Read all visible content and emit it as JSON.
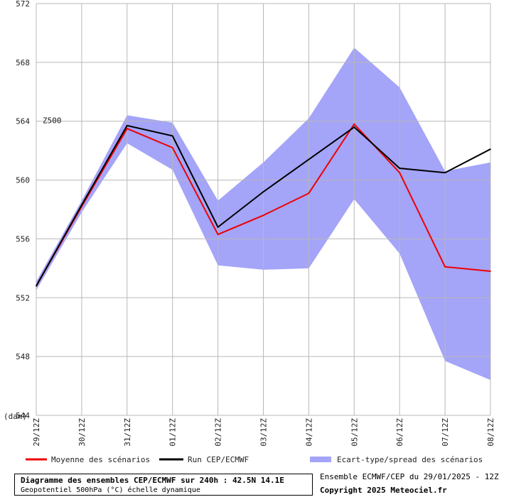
{
  "chart_data": {
    "type": "line",
    "ylabel": "(dam)",
    "ylim": [
      544,
      572
    ],
    "yticks": [
      "572",
      "568",
      "564",
      "560",
      "556",
      "552",
      "548",
      "544"
    ],
    "ytick_values": [
      572,
      568,
      564,
      560,
      556,
      552,
      548,
      544
    ],
    "categories": [
      "29/12Z",
      "30/12Z",
      "31/12Z",
      "01/12Z",
      "02/12Z",
      "03/12Z",
      "04/12Z",
      "05/12Z",
      "06/12Z",
      "07/12Z",
      "08/12Z"
    ],
    "annotation": "Z500",
    "annotation_value": 564,
    "grid": true,
    "series": [
      {
        "name": "Moyenne des scénarios",
        "color": "#ee0000",
        "values": [
          552.8,
          558.2,
          563.5,
          562.2,
          556.3,
          557.6,
          559.1,
          563.8,
          560.5,
          554.1,
          553.8
        ]
      },
      {
        "name": "Run CEP/ECMWF",
        "color": "#000000",
        "values": [
          552.8,
          558.3,
          563.7,
          563.0,
          556.8,
          559.2,
          561.4,
          563.6,
          560.8,
          560.5,
          562.1
        ]
      }
    ],
    "band": {
      "name": "Ecart-type/spread des scénarios",
      "color": "#a4a4f8",
      "upper": [
        553.1,
        558.6,
        564.4,
        563.9,
        558.6,
        561.2,
        564.2,
        569.0,
        566.3,
        560.6,
        561.2
      ],
      "lower": [
        552.5,
        557.8,
        562.5,
        560.7,
        554.2,
        553.9,
        554.0,
        558.7,
        555.0,
        547.7,
        546.4
      ]
    }
  },
  "footer": {
    "title": "Diagramme des ensembles CEP/ECMWF sur 240h : 42.5N 14.1E",
    "subtitle": "Geopotentiel 500hPa (°C) échelle dynamique",
    "run_info": "Ensemble ECMWF/CEP du 29/01/2025 - 12Z",
    "copyright": "Copyright 2025 Meteociel.fr"
  }
}
